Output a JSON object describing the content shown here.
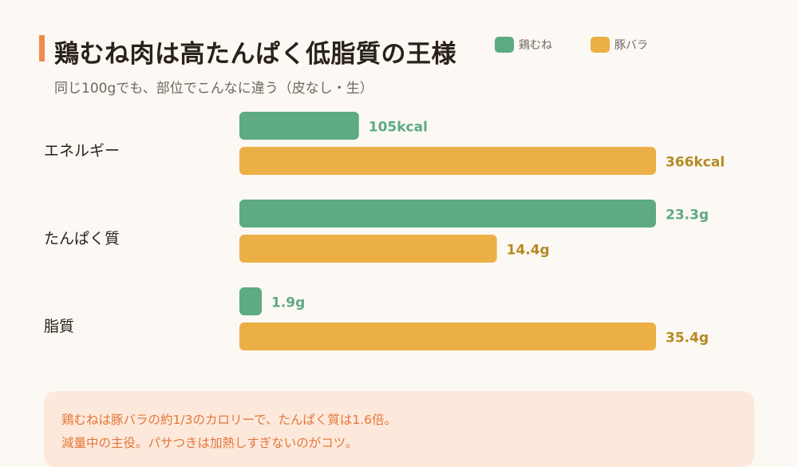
{
  "header": {
    "title": "鶏むね肉は高たんぱく低脂質の王様",
    "subtitle": "同じ100gでも、部位でこんなに違う（皮なし・生）"
  },
  "legend": [
    {
      "name": "鶏むね",
      "color": "#5eaa82"
    },
    {
      "name": "豚バラ",
      "color": "#ecaf45"
    }
  ],
  "colors": {
    "chicken": "#5eaa82",
    "pork": "#ecaf45",
    "chicken_label": "#5eaa82",
    "pork_label": "#b58a25",
    "accent": "#f08a4b",
    "note_bg": "#fde9dc",
    "note_text": "#e4763a"
  },
  "chart_data": {
    "type": "bar",
    "orientation": "horizontal",
    "grid": false,
    "legend_position": "top-right",
    "categories": [
      "エネルギー",
      "たんぱく質",
      "脂質"
    ],
    "series": [
      {
        "name": "鶏むね",
        "values": [
          105,
          23.3,
          1.9
        ],
        "labels": [
          "105kcal",
          "23.3g",
          "1.9g"
        ]
      },
      {
        "name": "豚バラ",
        "values": [
          366,
          14.4,
          35.4
        ],
        "labels": [
          "366kcal",
          "14.4g",
          "35.4g"
        ]
      }
    ]
  },
  "note": {
    "lines": [
      "鶏むねは豚バラの約1/3のカロリーで、たんぱく質は1.6倍。",
      "減量中の主役。パサつきは加熱しすぎないのがコツ。"
    ]
  }
}
